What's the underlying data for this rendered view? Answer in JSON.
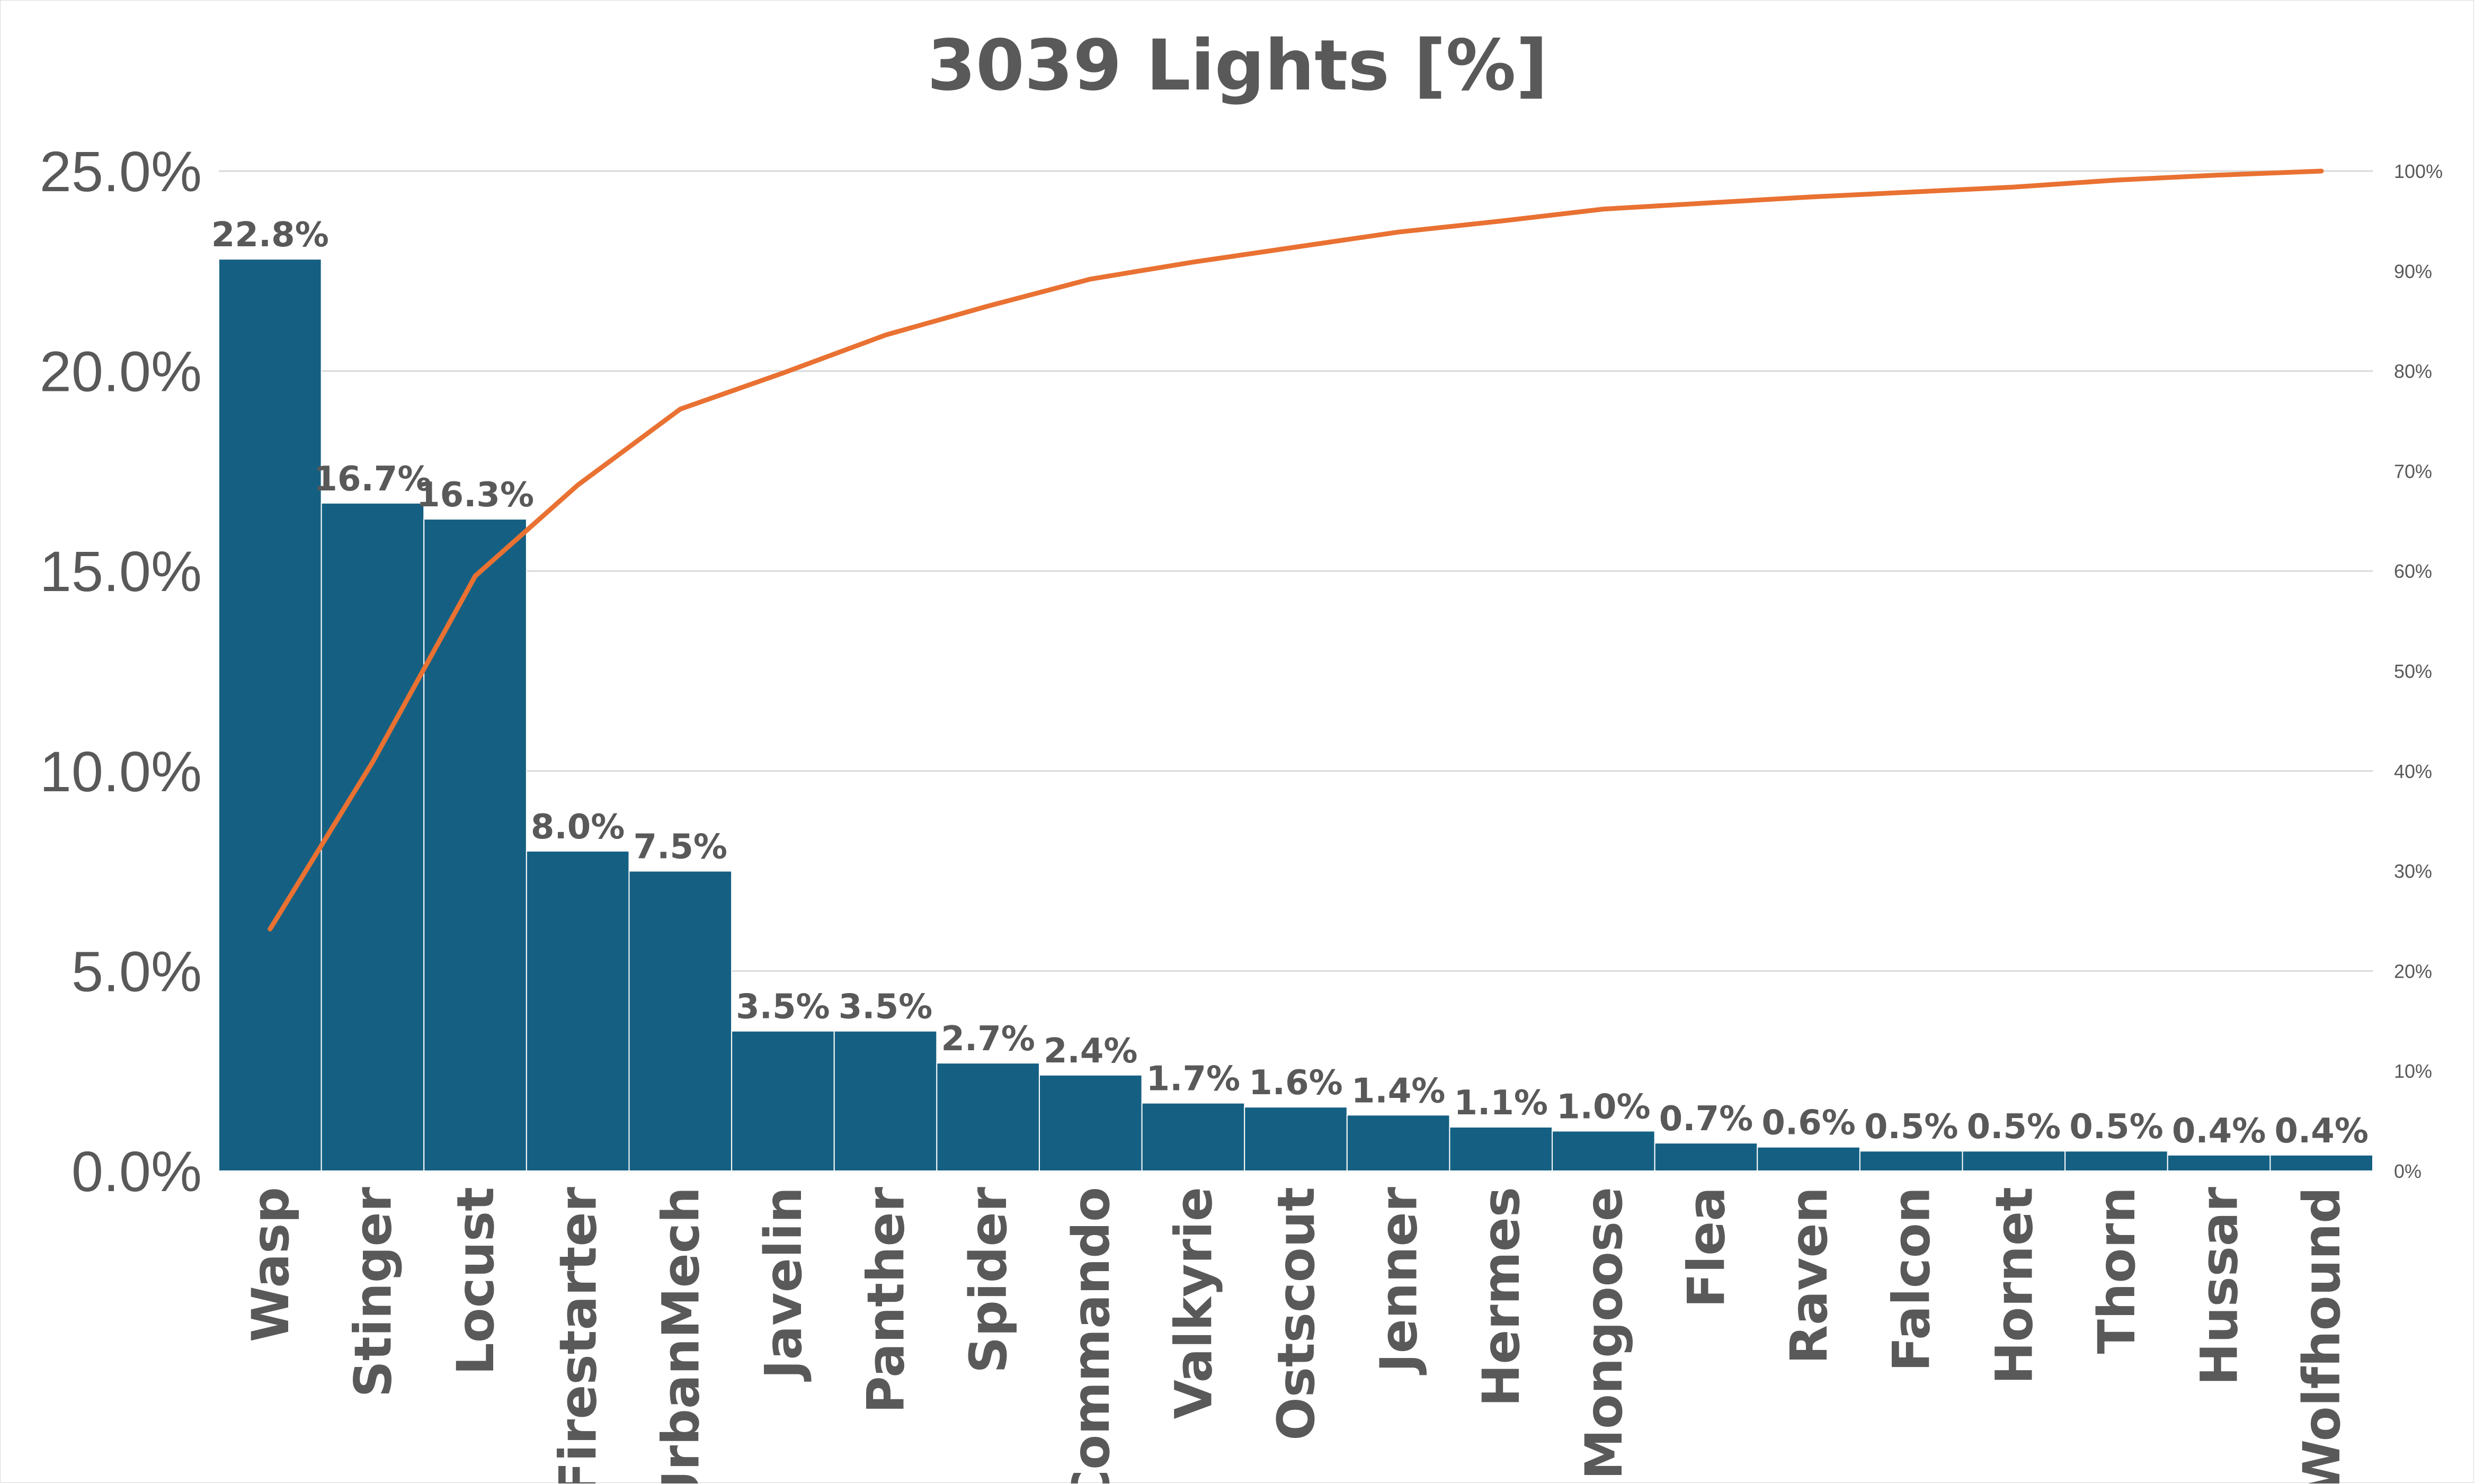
{
  "chart_data": {
    "type": "bar",
    "title": "3039 Lights [%]",
    "categories": [
      "Wasp",
      "Stinger",
      "Locust",
      "Firestarter",
      "UrbanMech",
      "Javelin",
      "Panther",
      "Spider",
      "Commando",
      "Valkyrie",
      "Ostscout",
      "Jenner",
      "Hermes",
      "Mongoose",
      "Flea",
      "Raven",
      "Falcon",
      "Hornet",
      "Thorn",
      "Hussar",
      "Wolfhound"
    ],
    "series": [
      {
        "type": "bar",
        "values": [
          22.8,
          16.7,
          16.3,
          8.0,
          7.5,
          3.5,
          3.5,
          2.7,
          2.4,
          1.7,
          1.6,
          1.4,
          1.1,
          1.0,
          0.7,
          0.6,
          0.5,
          0.5,
          0.5,
          0.4,
          0.4
        ],
        "data_labels": [
          "22.8%",
          "16.7%",
          "16.3%",
          "8.0%",
          "7.5%",
          "3.5%",
          "3.5%",
          "2.7%",
          "2.4%",
          "1.7%",
          "1.6%",
          "1.4%",
          "1.1%",
          "1.0%",
          "0.7%",
          "0.6%",
          "0.5%",
          "0.5%",
          "0.5%",
          "0.4%",
          "0.4%"
        ],
        "color": "#156082"
      },
      {
        "type": "line",
        "axis": "secondary",
        "values": [
          24.2,
          40.9,
          59.5,
          68.6,
          76.2,
          79.8,
          83.6,
          86.5,
          89.2,
          90.9,
          92.4,
          93.9,
          95.0,
          96.2,
          96.8,
          97.4,
          97.9,
          98.4,
          99.1,
          99.6,
          100.0
        ],
        "color": "#E97132"
      }
    ],
    "ylim": [
      0,
      25
    ],
    "yticks": [
      "0.0%",
      "5.0%",
      "10.0%",
      "15.0%",
      "20.0%",
      "25.0%"
    ],
    "y2lim": [
      0,
      100
    ],
    "y2ticks": [
      "0%",
      "10%",
      "20%",
      "30%",
      "40%",
      "50%",
      "60%",
      "70%",
      "80%",
      "90%",
      "100%"
    ],
    "grid": true,
    "colors": {
      "bar": "#156082",
      "line": "#E97132",
      "grid": "#d9d9d9",
      "text": "#595959"
    }
  }
}
